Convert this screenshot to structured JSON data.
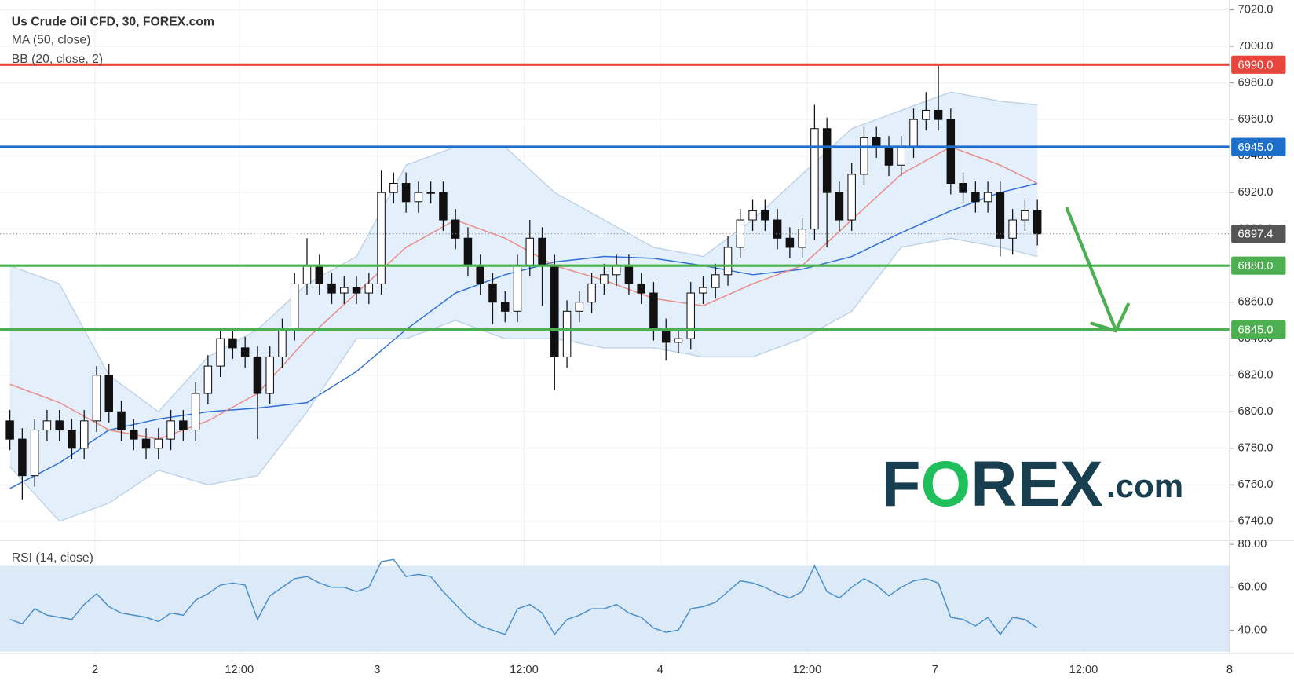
{
  "chart_data": [
    {
      "type": "candlestick",
      "title": "Us Crude Oil CFD, 30, FOREX.com",
      "x": [
        0,
        1,
        2,
        3,
        4,
        5,
        6,
        7,
        8,
        9,
        10,
        11,
        12,
        13,
        14,
        15,
        16,
        17,
        18,
        19,
        20,
        21,
        22,
        23,
        24,
        25,
        26,
        27,
        28,
        29,
        30,
        31,
        32,
        33,
        34,
        35,
        36,
        37,
        38,
        39,
        40,
        41,
        42,
        43,
        44,
        45,
        46,
        47,
        48,
        49,
        50,
        51,
        52,
        53,
        54,
        55,
        56,
        57,
        58,
        59,
        60,
        61,
        62,
        63,
        64,
        65,
        66,
        67,
        68,
        69,
        70,
        71,
        72,
        73,
        74,
        75,
        76,
        77,
        78,
        79,
        80,
        81,
        82,
        83
      ],
      "open": [
        6795,
        6785,
        6765,
        6790,
        6795,
        6790,
        6780,
        6795,
        6820,
        6800,
        6790,
        6785,
        6780,
        6785,
        6795,
        6790,
        6810,
        6825,
        6840,
        6835,
        6830,
        6810,
        6830,
        6845,
        6870,
        6880,
        6870,
        6865,
        6868,
        6865,
        6870,
        6920,
        6925,
        6915,
        6920,
        6920,
        6905,
        6895,
        6880,
        6870,
        6860,
        6855,
        6880,
        6895,
        6880,
        6830,
        6855,
        6860,
        6870,
        6875,
        6880,
        6870,
        6865,
        6845,
        6838,
        6840,
        6865,
        6868,
        6875,
        6890,
        6905,
        6910,
        6905,
        6895,
        6890,
        6900,
        6955,
        6920,
        6905,
        6930,
        6950,
        6945,
        6935,
        6945,
        6960,
        6965,
        6960,
        6925,
        6920,
        6915,
        6920,
        6895,
        6905,
        6910
      ],
      "high": [
        6801,
        6791,
        6796,
        6801,
        6801,
        6796,
        6801,
        6825,
        6826,
        6806,
        6796,
        6791,
        6791,
        6801,
        6801,
        6816,
        6831,
        6846,
        6846,
        6841,
        6836,
        6836,
        6851,
        6876,
        6895,
        6886,
        6876,
        6874,
        6874,
        6876,
        6932,
        6931,
        6931,
        6926,
        6926,
        6926,
        6911,
        6901,
        6886,
        6876,
        6866,
        6886,
        6905,
        6901,
        6886,
        6861,
        6866,
        6876,
        6881,
        6886,
        6886,
        6876,
        6871,
        6851,
        6846,
        6871,
        6874,
        6881,
        6896,
        6911,
        6916,
        6916,
        6911,
        6901,
        6906,
        6968,
        6961,
        6926,
        6936,
        6956,
        6956,
        6951,
        6951,
        6966,
        6975,
        6990,
        6966,
        6931,
        6926,
        6926,
        6926,
        6911,
        6916,
        6916
      ],
      "low": [
        6779,
        6752,
        6759,
        6784,
        6784,
        6774,
        6774,
        6789,
        6794,
        6784,
        6779,
        6774,
        6774,
        6779,
        6784,
        6784,
        6804,
        6819,
        6829,
        6824,
        6785,
        6804,
        6824,
        6839,
        6864,
        6864,
        6859,
        6859,
        6859,
        6859,
        6864,
        6914,
        6909,
        6909,
        6914,
        6899,
        6889,
        6874,
        6864,
        6848,
        6849,
        6849,
        6874,
        6858,
        6812,
        6824,
        6849,
        6854,
        6864,
        6869,
        6864,
        6859,
        6839,
        6828,
        6832,
        6834,
        6859,
        6862,
        6869,
        6884,
        6899,
        6899,
        6889,
        6884,
        6884,
        6894,
        6890,
        6899,
        6899,
        6924,
        6939,
        6929,
        6929,
        6939,
        6954,
        6954,
        6919,
        6914,
        6909,
        6909,
        6885,
        6886,
        6899,
        6891
      ],
      "close": [
        6785,
        6765,
        6790,
        6795,
        6790,
        6780,
        6795,
        6820,
        6800,
        6790,
        6785,
        6780,
        6785,
        6795,
        6790,
        6810,
        6825,
        6840,
        6835,
        6830,
        6810,
        6830,
        6845,
        6870,
        6880,
        6870,
        6865,
        6868,
        6865,
        6870,
        6920,
        6925,
        6915,
        6920,
        6920,
        6905,
        6895,
        6880,
        6870,
        6860,
        6855,
        6880,
        6895,
        6880,
        6830,
        6855,
        6860,
        6870,
        6875,
        6880,
        6870,
        6865,
        6845,
        6838,
        6840,
        6865,
        6868,
        6875,
        6890,
        6905,
        6910,
        6905,
        6895,
        6890,
        6900,
        6955,
        6920,
        6905,
        6930,
        6950,
        6945,
        6935,
        6945,
        6960,
        6965,
        6960,
        6925,
        6920,
        6915,
        6920,
        6895,
        6905,
        6910,
        6897.4
      ],
      "series": [
        {
          "name": "MA (50, close)",
          "color": "#2f6fd6",
          "x": [
            0,
            4,
            8,
            12,
            16,
            20,
            24,
            28,
            32,
            36,
            40,
            44,
            48,
            52,
            56,
            60,
            64,
            68,
            72,
            76,
            80,
            83
          ],
          "values": [
            6758,
            6772,
            6790,
            6796,
            6800,
            6802,
            6805,
            6822,
            6845,
            6865,
            6875,
            6882,
            6885,
            6884,
            6880,
            6875,
            6878,
            6885,
            6898,
            6910,
            6920,
            6925
          ]
        },
        {
          "name": "BB (20, close, 2)",
          "color": "#ec8a85",
          "band_color": "#e3effa",
          "edge_color": "#b9cfe3",
          "x": [
            0,
            4,
            8,
            12,
            16,
            20,
            24,
            28,
            32,
            36,
            40,
            44,
            48,
            52,
            56,
            60,
            64,
            68,
            72,
            76,
            80,
            83
          ],
          "values": [
            6815,
            6805,
            6790,
            6785,
            6795,
            6810,
            6840,
            6865,
            6890,
            6905,
            6895,
            6880,
            6872,
            6862,
            6858,
            6870,
            6880,
            6905,
            6930,
            6945,
            6935,
            6925
          ],
          "upper": [
            6880,
            6870,
            6820,
            6800,
            6830,
            6845,
            6870,
            6885,
            6935,
            6945,
            6945,
            6920,
            6905,
            6890,
            6885,
            6905,
            6930,
            6955,
            6965,
            6975,
            6970,
            6968
          ],
          "lower": [
            6770,
            6740,
            6750,
            6768,
            6760,
            6765,
            6800,
            6840,
            6840,
            6850,
            6840,
            6840,
            6835,
            6835,
            6830,
            6830,
            6840,
            6855,
            6890,
            6895,
            6890,
            6885
          ]
        }
      ],
      "levels": [
        {
          "value": 6990,
          "label": "6990.0",
          "color": "#e8453c"
        },
        {
          "value": 6945,
          "label": "6945.0",
          "color": "#1e6fc9"
        },
        {
          "value": 6880,
          "label": "6880.0",
          "color": "#4caf50"
        },
        {
          "value": 6845,
          "label": "6845.0",
          "color": "#4caf50"
        }
      ],
      "xlim": [
        -0.8,
        98.53
      ],
      "ylim": [
        6729.6,
        7025.4
      ],
      "yticks": [
        {
          "value": 6740,
          "label": "6740.0"
        },
        {
          "value": 6760,
          "label": "6760.0"
        },
        {
          "value": 6780,
          "label": "6780.0"
        },
        {
          "value": 6800,
          "label": "6800.0"
        },
        {
          "value": 6820,
          "label": "6820.0"
        },
        {
          "value": 6840,
          "label": "6840.0"
        },
        {
          "value": 6860,
          "label": "6860.0"
        },
        {
          "value": 6880,
          "label": "6880.0"
        },
        {
          "value": 6900,
          "label": "6900.0"
        },
        {
          "value": 6920,
          "label": "6920.0"
        },
        {
          "value": 6940,
          "label": "6940.0"
        },
        {
          "value": 6960,
          "label": "6960.0"
        },
        {
          "value": 6980,
          "label": "6980.0"
        },
        {
          "value": 7000,
          "label": "7000.0"
        },
        {
          "value": 7020,
          "label": "7020.0"
        }
      ],
      "grid": true,
      "logo": [
        "F",
        "O",
        "REX",
        ".com"
      ]
    },
    {
      "type": "line",
      "title": "RSI (14, close)",
      "color": "#4a90c8",
      "band": [
        30,
        70
      ],
      "band_color": "#dceaf8",
      "values": [
        45,
        43,
        50,
        47,
        46,
        45,
        52,
        57,
        51,
        48,
        47,
        46,
        44,
        48,
        47,
        54,
        57,
        61,
        62,
        61,
        45,
        56,
        60,
        64,
        65,
        62,
        60,
        60,
        58,
        60,
        72,
        73,
        65,
        66,
        65,
        58,
        52,
        46,
        42,
        40,
        38,
        50,
        52,
        48,
        38,
        45,
        47,
        50,
        50,
        52,
        48,
        46,
        41,
        39,
        40,
        50,
        51,
        53,
        58,
        63,
        62,
        60,
        57,
        55,
        58,
        70,
        58,
        55,
        60,
        64,
        61,
        56,
        60,
        63,
        64,
        62,
        46,
        45,
        42,
        46,
        38,
        46,
        45,
        41
      ],
      "ylim": [
        29.2,
        81.9
      ],
      "yticks": [
        {
          "value": 40,
          "label": "40.00"
        },
        {
          "value": 60,
          "label": "60.00"
        },
        {
          "value": 80,
          "label": "80.00"
        }
      ],
      "xlim": [
        -0.8,
        98.53
      ],
      "xticks": [
        {
          "value": 6.87,
          "label": "2"
        },
        {
          "value": 18.53,
          "label": "12:00"
        },
        {
          "value": 29.67,
          "label": "3"
        },
        {
          "value": 41.53,
          "label": "12:00"
        },
        {
          "value": 52.53,
          "label": "4"
        },
        {
          "value": 64.4,
          "label": "12:00"
        },
        {
          "value": 74.73,
          "label": "7"
        },
        {
          "value": 86.73,
          "label": "12:00"
        },
        {
          "value": 98.53,
          "label": "8"
        }
      ]
    }
  ]
}
